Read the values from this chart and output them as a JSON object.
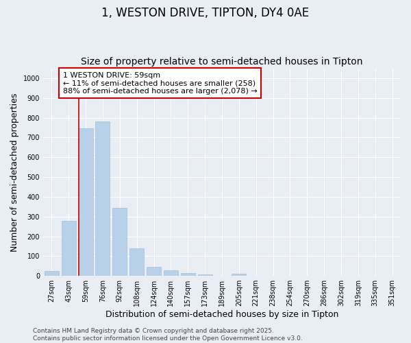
{
  "title": "1, WESTON DRIVE, TIPTON, DY4 0AE",
  "subtitle": "Size of property relative to semi-detached houses in Tipton",
  "xlabel": "Distribution of semi-detached houses by size in Tipton",
  "ylabel": "Number of semi-detached properties",
  "categories": [
    "27sqm",
    "43sqm",
    "59sqm",
    "76sqm",
    "92sqm",
    "108sqm",
    "124sqm",
    "140sqm",
    "157sqm",
    "173sqm",
    "189sqm",
    "205sqm",
    "221sqm",
    "238sqm",
    "254sqm",
    "270sqm",
    "286sqm",
    "302sqm",
    "319sqm",
    "335sqm",
    "351sqm"
  ],
  "values": [
    25,
    278,
    745,
    783,
    345,
    140,
    47,
    27,
    14,
    9,
    0,
    11,
    0,
    0,
    0,
    0,
    0,
    0,
    0,
    0,
    0
  ],
  "bar_color": "#b8d0e8",
  "bar_edge_color": "#9ab8d4",
  "highlight_color": "#cc0000",
  "highlight_bar_idx": 2,
  "annotation_text": "1 WESTON DRIVE: 59sqm\n← 11% of semi-detached houses are smaller (258)\n88% of semi-detached houses are larger (2,078) →",
  "annotation_box_facecolor": "#ffffff",
  "annotation_box_edgecolor": "#cc0000",
  "ylim": [
    0,
    1050
  ],
  "yticks": [
    0,
    100,
    200,
    300,
    400,
    500,
    600,
    700,
    800,
    900,
    1000
  ],
  "bg_color": "#e8eef4",
  "plot_bg_color": "#e8eef4",
  "grid_color": "#ffffff",
  "title_fontsize": 12,
  "subtitle_fontsize": 10,
  "axis_label_fontsize": 9,
  "tick_fontsize": 7,
  "annotation_fontsize": 8,
  "footer_fontsize": 6.5,
  "footer_text": "Contains HM Land Registry data © Crown copyright and database right 2025.\nContains public sector information licensed under the Open Government Licence v3.0."
}
